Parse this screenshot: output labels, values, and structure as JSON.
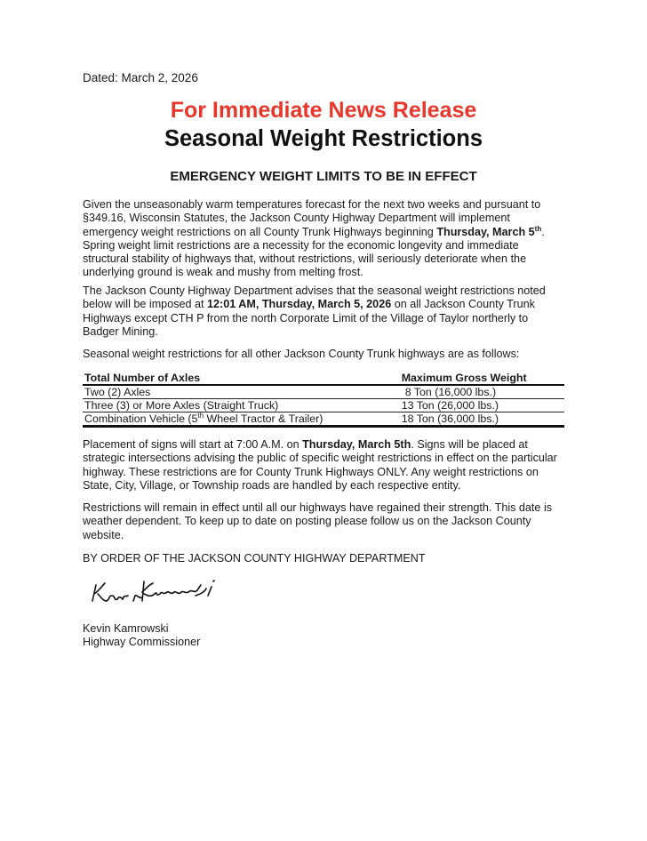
{
  "dated": "Dated: March 2, 2026",
  "release": "For Immediate News Release",
  "title": "Seasonal Weight Restrictions",
  "heading": "EMERGENCY WEIGHT LIMITS TO BE IN EFFECT",
  "p1": {
    "a": "Given the unseasonably warm temperatures forecast for the next two weeks and pursuant to §349.16, Wisconsin Statutes, the Jackson County Highway Department will implement emergency weight restrictions on all County Trunk Highways beginning ",
    "b": "Thursday, March 5",
    "sup": "th",
    "c": ". Spring weight limit restrictions are a necessity for the economic longevity and immediate structural stability of highways that, without restrictions, will seriously deteriorate when the underlying ground is weak and mushy from melting frost."
  },
  "p2": {
    "a": "The Jackson County Highway Department advises that the seasonal weight restrictions noted below will be imposed at ",
    "b": "12:01 AM, Thursday, March 5, 2026",
    "c": " on all Jackson County Trunk Highways except CTH P from the north Corporate Limit of the Village of Taylor northerly to Badger Mining."
  },
  "p3": "Seasonal weight restrictions for all other Jackson County Trunk highways are as follows:",
  "table": {
    "headers": [
      "Total Number of Axles",
      "Maximum Gross Weight"
    ],
    "rows": [
      [
        "Two (2) Axles",
        "8 Ton (16,000 lbs.)"
      ],
      [
        "Three (3) or More Axles (Straight Truck)",
        "13 Ton (26,000 lbs.)"
      ],
      [
        "Combination Vehicle (5",
        "th",
        " Wheel Tractor & Trailer)",
        "18 Ton (36,000 lbs.)"
      ]
    ]
  },
  "p4": {
    "a": "Placement of signs will start at 7:00 A.M. on ",
    "b": "Thursday, March 5th",
    "c": ".  Signs will be placed at strategic intersections advising the public of specific weight restrictions in effect on the particular highway.  These restrictions are for County Trunk Highways ONLY.  Any weight restrictions on State, City, Village, or Township roads are handled by each respective entity."
  },
  "p5": "Restrictions will remain in effect until all our highways have regained their strength.  This date is weather dependent. To keep up to date on posting please follow us on the Jackson County website.",
  "order": "BY ORDER OF THE JACKSON COUNTY HIGHWAY DEPARTMENT",
  "signature": "Kevin Kamrowski",
  "name": "Kevin Kamrowski",
  "role": "Highway Commissioner",
  "colors": {
    "release": "#e8372a"
  }
}
